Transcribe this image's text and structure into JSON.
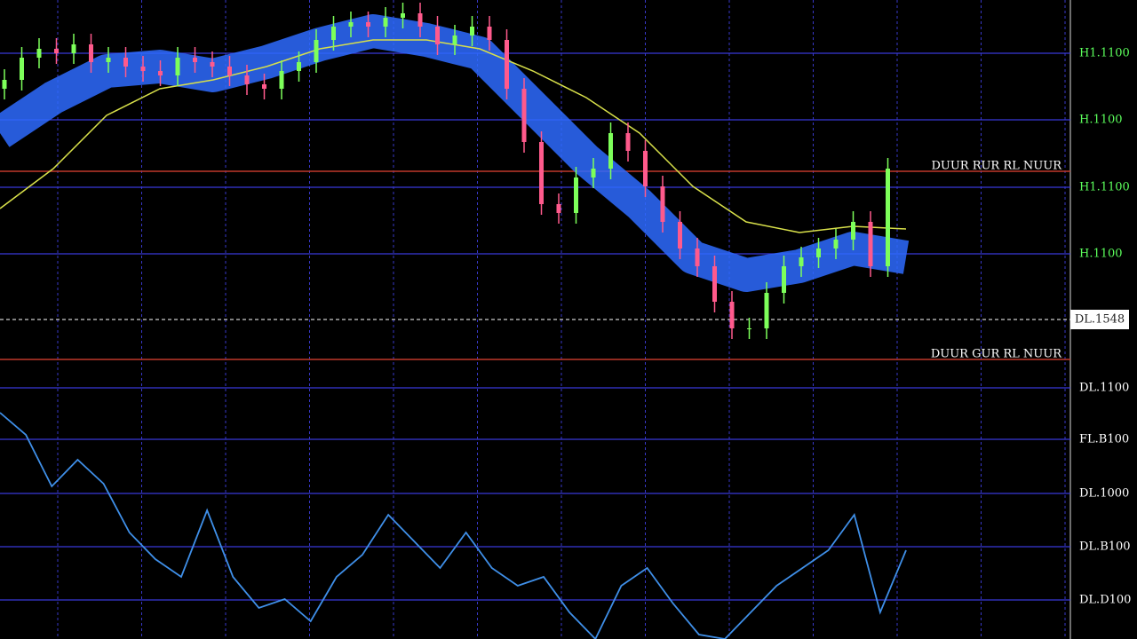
{
  "chart_data": {
    "type": "candlestick",
    "ylim": [
      0,
      720
    ],
    "yticks": [
      {
        "value": 660,
        "label": "H1.1100"
      },
      {
        "value": 585,
        "label": "H.1100"
      },
      {
        "value": 509,
        "label": "H1.1100"
      },
      {
        "value": 434,
        "label": "H.1100"
      },
      {
        "value": 283,
        "label": "DL.1100"
      },
      {
        "value": 225,
        "label": "FL.B100"
      },
      {
        "value": 164,
        "label": "DL.1000"
      },
      {
        "value": 104,
        "label": "DL.B100"
      },
      {
        "value": 44,
        "label": "DL.D100"
      }
    ],
    "levels": [
      {
        "value": 527,
        "label": "DUUR RUR RL NUUR",
        "color": "#c0392b"
      },
      {
        "value": 315,
        "label": "DUUR GUR RL NUUR",
        "color": "#c0392b"
      }
    ],
    "current": {
      "value": 360,
      "label": "DL.1548"
    },
    "up_color": "#7dff5a",
    "down_color": "#ff5a8c",
    "open": [
      620,
      630,
      655,
      665,
      660,
      670,
      650,
      655,
      645,
      640,
      635,
      655,
      650,
      645,
      635,
      625,
      620,
      640,
      650,
      675,
      690,
      695,
      690,
      700,
      705,
      690,
      670,
      680,
      690,
      675,
      620,
      560,
      490,
      480,
      520,
      530,
      570,
      550,
      510,
      470,
      440,
      420,
      380,
      350,
      350,
      390,
      420,
      430,
      440,
      450,
      470,
      420
    ],
    "high": [
      642,
      667,
      677,
      677,
      682,
      682,
      667,
      667,
      657,
      652,
      667,
      667,
      662,
      657,
      647,
      637,
      652,
      662,
      687,
      702,
      707,
      707,
      712,
      717,
      717,
      702,
      692,
      702,
      702,
      687,
      632,
      572,
      502,
      532,
      542,
      582,
      582,
      562,
      522,
      482,
      452,
      432,
      392,
      362,
      402,
      432,
      442,
      452,
      462,
      482,
      482,
      542
    ],
    "low": [
      608,
      618,
      643,
      648,
      648,
      638,
      638,
      633,
      628,
      623,
      623,
      638,
      633,
      623,
      613,
      608,
      608,
      628,
      638,
      663,
      678,
      678,
      678,
      688,
      678,
      658,
      658,
      668,
      663,
      608,
      548,
      478,
      468,
      468,
      508,
      518,
      538,
      498,
      458,
      428,
      408,
      368,
      338,
      338,
      338,
      378,
      408,
      418,
      428,
      438,
      408,
      408
    ],
    "close": [
      630,
      655,
      665,
      660,
      670,
      650,
      655,
      645,
      640,
      635,
      655,
      650,
      645,
      635,
      625,
      620,
      640,
      650,
      675,
      690,
      695,
      690,
      700,
      705,
      690,
      670,
      680,
      690,
      675,
      620,
      560,
      490,
      480,
      520,
      530,
      570,
      550,
      510,
      470,
      440,
      420,
      380,
      350,
      350,
      390,
      420,
      430,
      440,
      450,
      470,
      420,
      530
    ],
    "band": {
      "color": "#2e6bff",
      "values": [
        570,
        610,
        640,
        645,
        635,
        650,
        670,
        685,
        675,
        660,
        600,
        540,
        490,
        430,
        410,
        420,
        440,
        430
      ]
    },
    "ma": {
      "color": "#d8e04a",
      "values": [
        485,
        530,
        590,
        620,
        630,
        645,
        665,
        675,
        675,
        665,
        640,
        610,
        570,
        510,
        470,
        458,
        465,
        462
      ]
    },
    "oscillator": {
      "color": "#3f8fe8",
      "values": [
        255,
        230,
        172,
        202,
        175,
        120,
        90,
        70,
        145,
        70,
        35,
        45,
        20,
        70,
        95,
        140,
        110,
        80,
        120,
        80,
        60,
        70,
        30,
        0,
        60,
        80,
        40,
        5,
        0,
        30,
        60,
        80,
        100,
        140,
        30,
        100
      ]
    }
  }
}
